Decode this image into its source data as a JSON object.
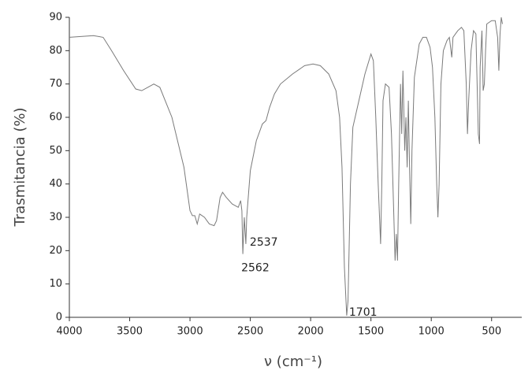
{
  "chart_data": {
    "type": "line",
    "xlabel": "ν (cm⁻¹)",
    "ylabel": "Trasmitancia (%)",
    "color": "#7a7a7a",
    "xlim": [
      4000,
      250
    ],
    "ylim": [
      0,
      90
    ],
    "xticks": [
      4000,
      3500,
      3000,
      2500,
      2000,
      1500,
      1000,
      500
    ],
    "yticks": [
      0,
      10,
      20,
      30,
      40,
      50,
      60,
      70,
      80,
      90
    ],
    "annotations": [
      2537,
      2562,
      1701
    ],
    "x": [
      4000,
      3800,
      3720,
      3650,
      3550,
      3450,
      3400,
      3350,
      3300,
      3250,
      3150,
      3050,
      3000,
      2980,
      2960,
      2940,
      2920,
      2880,
      2840,
      2800,
      2780,
      2750,
      2730,
      2700,
      2650,
      2600,
      2580,
      2570,
      2562,
      2550,
      2537,
      2530,
      2500,
      2450,
      2400,
      2370,
      2340,
      2300,
      2250,
      2150,
      2050,
      1980,
      1920,
      1850,
      1790,
      1760,
      1740,
      1720,
      1701,
      1690,
      1670,
      1650,
      1600,
      1550,
      1500,
      1480,
      1460,
      1440,
      1420,
      1410,
      1400,
      1380,
      1350,
      1330,
      1310,
      1300,
      1290,
      1280,
      1270,
      1255,
      1245,
      1235,
      1220,
      1210,
      1200,
      1190,
      1180,
      1170,
      1160,
      1140,
      1100,
      1070,
      1040,
      1010,
      990,
      970,
      955,
      945,
      935,
      920,
      900,
      870,
      850,
      830,
      820,
      800,
      780,
      750,
      730,
      710,
      700,
      690,
      670,
      650,
      630,
      620,
      610,
      600,
      595,
      580,
      570,
      560,
      550,
      540,
      500,
      470,
      450,
      440,
      430,
      420,
      410
    ],
    "values": [
      84,
      84.5,
      84,
      80,
      74,
      68.5,
      68,
      69,
      70,
      69,
      60,
      45,
      32,
      30.5,
      30.5,
      28,
      31,
      30,
      28,
      27.5,
      29,
      36,
      37.5,
      36,
      34,
      33,
      35,
      32,
      19,
      30,
      22,
      30,
      44,
      53,
      58,
      59,
      63,
      67,
      70,
      73,
      75.5,
      76,
      75.5,
      73,
      68,
      60,
      45,
      15,
      0.5,
      5,
      40,
      57,
      65,
      73,
      79,
      77,
      60,
      40,
      22,
      40,
      65,
      70,
      69,
      55,
      30,
      17,
      25,
      17,
      40,
      70,
      55,
      74,
      50,
      60,
      45,
      65,
      45,
      28,
      50,
      72,
      82,
      84,
      84,
      81,
      75,
      60,
      40,
      30,
      40,
      70,
      80,
      83,
      84,
      78,
      84,
      85,
      86,
      87,
      86,
      70,
      55,
      65,
      80,
      86,
      85,
      70,
      55,
      52,
      75,
      86,
      68,
      70,
      80,
      88,
      89,
      89,
      84,
      74,
      85,
      90,
      88
    ]
  }
}
